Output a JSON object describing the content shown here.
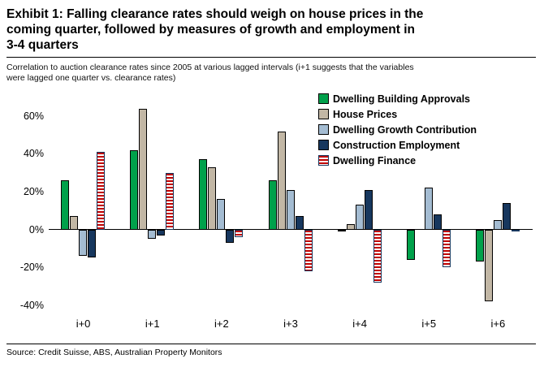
{
  "exhibit": {
    "title_lines": [
      "Exhibit 1: Falling clearance rates should weigh on house prices in the",
      "coming quarter, followed by measures of growth and employment in",
      "3-4 quarters"
    ],
    "subtitle_lines": [
      "Correlation to auction clearance rates since 2005 at various lagged intervals (i+1 suggests that the variables",
      "were lagged one quarter vs. clearance rates)"
    ],
    "source": "Source: Credit Suisse, ABS, Australian Property Monitors"
  },
  "chart_data": {
    "type": "bar",
    "title": "Exhibit 1: Falling clearance rates should weigh on house prices in the coming quarter, followed by measures of growth and employment in 3-4 quarters",
    "xlabel": "",
    "ylabel": "",
    "categories": [
      "i+0",
      "i+1",
      "i+2",
      "i+3",
      "i+4",
      "i+5",
      "i+6"
    ],
    "series": [
      {
        "name": "Dwelling Building Approvals",
        "color": "#00A14B",
        "pattern": "solid",
        "values": [
          26,
          42,
          37,
          26,
          -1,
          -16,
          -17
        ]
      },
      {
        "name": "House Prices",
        "color": "#C2B7A5",
        "pattern": "solid",
        "values": [
          7,
          64,
          33,
          52,
          3,
          0,
          -38
        ]
      },
      {
        "name": "Dwelling Growth Contribution",
        "color": "#A4BCD2",
        "pattern": "solid",
        "values": [
          -14,
          -5,
          16,
          21,
          13,
          22,
          5
        ]
      },
      {
        "name": "Construction Employment",
        "color": "#17375E",
        "pattern": "solid",
        "values": [
          -15,
          -3,
          -7,
          7,
          21,
          8,
          14
        ]
      },
      {
        "name": "Dwelling Finance",
        "color": "#C00000",
        "pattern": "horizontal-stripes",
        "stripe_border": "#17375E",
        "values": [
          41,
          30,
          -4,
          -22,
          -28,
          -20,
          -1
        ]
      }
    ],
    "y_ticks": [
      "60%",
      "40%",
      "20%",
      "0%",
      "-20%",
      "-40%"
    ],
    "y_tick_values": [
      60,
      40,
      20,
      0,
      -20,
      -40
    ],
    "ylim": [
      -44,
      72
    ],
    "legend_position": "top-right",
    "grid": false
  }
}
